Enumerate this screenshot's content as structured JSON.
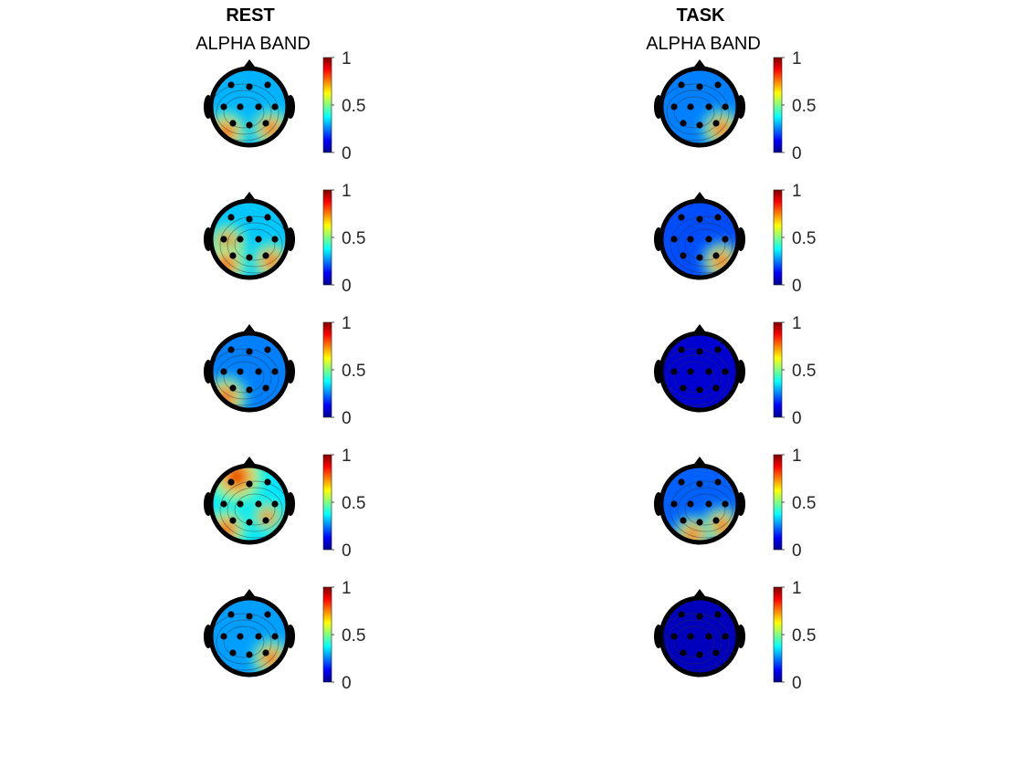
{
  "columns": [
    {
      "title": "REST",
      "subtitle": "ALPHA BAND"
    },
    {
      "title": "TASK",
      "subtitle": "ALPHA BAND"
    }
  ],
  "colorbar": {
    "ticks": [
      "1",
      "0.5",
      "0"
    ],
    "colormap": "jet"
  },
  "topomaps": {
    "rest": [
      {
        "row": 1,
        "level": 0.3,
        "hotspots": [
          "left-occipital",
          "right-occipital"
        ]
      },
      {
        "row": 2,
        "level": 0.32,
        "hotspots": [
          "left-temporal",
          "left-occipital",
          "right-occipital"
        ]
      },
      {
        "row": 3,
        "level": 0.25,
        "hotspots": [
          "left-occipital"
        ]
      },
      {
        "row": 4,
        "level": 0.35,
        "hotspots": [
          "frontal",
          "left-occipital",
          "right-parietal"
        ]
      },
      {
        "row": 5,
        "level": 0.28,
        "hotspots": [
          "right-occipital"
        ]
      }
    ],
    "task": [
      {
        "row": 1,
        "level": 0.25,
        "hotspots": [
          "right-occipital"
        ]
      },
      {
        "row": 2,
        "level": 0.2,
        "hotspots": [
          "right-occipital"
        ]
      },
      {
        "row": 3,
        "level": 0.08,
        "hotspots": []
      },
      {
        "row": 4,
        "level": 0.22,
        "hotspots": [
          "right-occipital",
          "occipital"
        ]
      },
      {
        "row": 5,
        "level": 0.06,
        "hotspots": []
      }
    ]
  }
}
